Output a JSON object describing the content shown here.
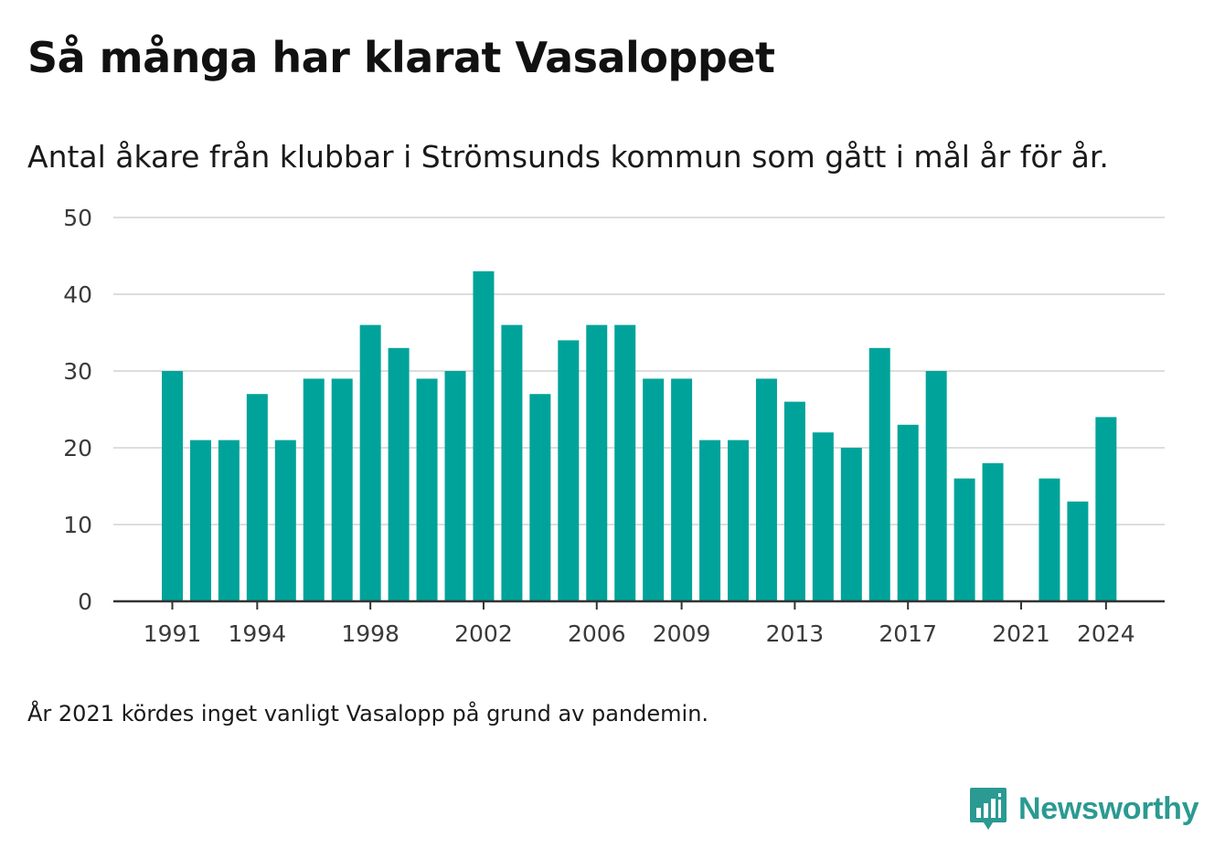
{
  "title": "Så många har klarat Vasaloppet",
  "subtitle": "Antal åkare från klubbar i Strömsunds kommun som gått i mål år för år.",
  "note": "År 2021 kördes inget vanligt Vasalopp på grund av pandemin.",
  "brand": {
    "name": "Newsworthy",
    "icon": "newsworthy-logo-icon",
    "color": "#2a9a92"
  },
  "colors": {
    "bar": "#00a39a",
    "grid": "#dddddd",
    "axis": "#333333",
    "text": "#3a3a3a"
  },
  "chart_data": {
    "type": "bar",
    "title": "Så många har klarat Vasaloppet",
    "subtitle": "Antal åkare från klubbar i Strömsunds kommun som gått i mål år för år.",
    "xlabel": "",
    "ylabel": "",
    "ylim": [
      0,
      50
    ],
    "yticks": [
      0,
      10,
      20,
      30,
      40,
      50
    ],
    "xticks": [
      1991,
      1994,
      1998,
      2002,
      2006,
      2009,
      2013,
      2017,
      2021,
      2024
    ],
    "grid": true,
    "legend": "none",
    "categories": [
      1991,
      1992,
      1993,
      1994,
      1995,
      1996,
      1997,
      1998,
      1999,
      2000,
      2001,
      2002,
      2003,
      2004,
      2005,
      2006,
      2007,
      2008,
      2009,
      2010,
      2011,
      2012,
      2013,
      2014,
      2015,
      2016,
      2017,
      2018,
      2019,
      2020,
      2021,
      2022,
      2023,
      2024
    ],
    "values": [
      30,
      21,
      21,
      27,
      21,
      29,
      29,
      36,
      33,
      29,
      30,
      43,
      36,
      27,
      34,
      36,
      36,
      29,
      29,
      21,
      21,
      29,
      26,
      22,
      20,
      33,
      23,
      30,
      16,
      18,
      null,
      16,
      13,
      24
    ]
  }
}
